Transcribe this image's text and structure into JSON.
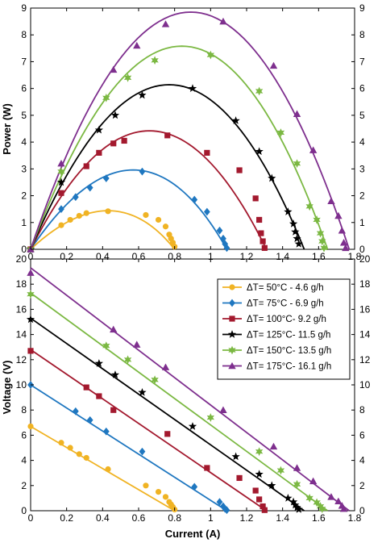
{
  "chart_data": [
    {
      "type": "scatter",
      "title": "",
      "xlabel": "",
      "ylabel": "Power (W)",
      "xlim": [
        0,
        1.8
      ],
      "ylim": [
        0,
        9
      ],
      "xticks": [
        "0",
        "0.2",
        "0.4",
        "0.6",
        "0.8",
        "1",
        "1.2",
        "1.4",
        "1.6",
        "1.8"
      ],
      "yticks": [
        "0",
        "1",
        "2",
        "3",
        "4",
        "5",
        "6",
        "7",
        "8",
        "9"
      ],
      "grid": false,
      "series": [
        {
          "key": "s50",
          "points": [
            [
              0,
              0
            ],
            [
              0.17,
              0.9
            ],
            [
              0.22,
              1.1
            ],
            [
              0.27,
              1.25
            ],
            [
              0.31,
              1.35
            ],
            [
              0.43,
              1.42
            ],
            [
              0.64,
              1.28
            ],
            [
              0.71,
              1.1
            ],
            [
              0.75,
              0.85
            ],
            [
              0.77,
              0.55
            ],
            [
              0.78,
              0.4
            ],
            [
              0.79,
              0.25
            ],
            [
              0.8,
              0.1
            ]
          ],
          "fit": [
            [
              0,
              0
            ],
            [
              0.43,
              1.44
            ],
            [
              0.8,
              0
            ]
          ]
        },
        {
          "key": "s75",
          "points": [
            [
              0,
              0
            ],
            [
              0.17,
              1.5
            ],
            [
              0.25,
              1.95
            ],
            [
              0.33,
              2.3
            ],
            [
              0.42,
              2.65
            ],
            [
              0.62,
              2.9
            ],
            [
              0.91,
              1.85
            ],
            [
              0.98,
              1.4
            ],
            [
              1.05,
              0.7
            ],
            [
              1.07,
              0.4
            ],
            [
              1.08,
              0.2
            ],
            [
              1.09,
              0.05
            ]
          ],
          "fit": [
            [
              0,
              0
            ],
            [
              0.57,
              2.96
            ],
            [
              1.09,
              0
            ]
          ]
        },
        {
          "key": "s100",
          "points": [
            [
              0,
              0
            ],
            [
              0.17,
              2.1
            ],
            [
              0.31,
              3.1
            ],
            [
              0.38,
              3.6
            ],
            [
              0.46,
              3.95
            ],
            [
              0.52,
              4.05
            ],
            [
              0.76,
              4.25
            ],
            [
              0.98,
              3.6
            ],
            [
              1.16,
              2.95
            ],
            [
              1.25,
              1.9
            ],
            [
              1.27,
              1.1
            ],
            [
              1.28,
              0.6
            ],
            [
              1.29,
              0.3
            ],
            [
              1.3,
              0.05
            ]
          ],
          "fit": [
            [
              0,
              0
            ],
            [
              0.66,
              4.42
            ],
            [
              1.31,
              0
            ]
          ]
        },
        {
          "key": "s125",
          "points": [
            [
              0,
              0
            ],
            [
              0.17,
              2.5
            ],
            [
              0.38,
              4.45
            ],
            [
              0.47,
              5.0
            ],
            [
              0.62,
              5.75
            ],
            [
              0.9,
              6.0
            ],
            [
              1.14,
              4.8
            ],
            [
              1.27,
              3.65
            ],
            [
              1.34,
              2.65
            ],
            [
              1.43,
              1.4
            ],
            [
              1.46,
              0.95
            ],
            [
              1.47,
              0.65
            ],
            [
              1.48,
              0.4
            ],
            [
              1.49,
              0.2
            ]
          ],
          "fit": [
            [
              0,
              0
            ],
            [
              0.77,
              6.14
            ],
            [
              1.52,
              0
            ]
          ]
        },
        {
          "key": "s150",
          "points": [
            [
              0,
              0
            ],
            [
              0.17,
              2.9
            ],
            [
              0.42,
              5.65
            ],
            [
              0.54,
              6.4
            ],
            [
              0.69,
              7.05
            ],
            [
              1.0,
              7.25
            ],
            [
              1.27,
              5.9
            ],
            [
              1.39,
              4.35
            ],
            [
              1.48,
              3.2
            ],
            [
              1.55,
              1.6
            ],
            [
              1.59,
              1.1
            ],
            [
              1.61,
              0.6
            ],
            [
              1.62,
              0.3
            ],
            [
              1.63,
              0.05
            ]
          ],
          "fit": [
            [
              0,
              0
            ],
            [
              0.84,
              7.58
            ],
            [
              1.65,
              0
            ]
          ]
        },
        {
          "key": "s175",
          "points": [
            [
              0,
              0
            ],
            [
              0.17,
              3.2
            ],
            [
              0.46,
              6.7
            ],
            [
              0.59,
              7.6
            ],
            [
              0.75,
              8.4
            ],
            [
              1.07,
              8.5
            ],
            [
              1.35,
              6.85
            ],
            [
              1.48,
              5.05
            ],
            [
              1.57,
              3.7
            ],
            [
              1.67,
              1.8
            ],
            [
              1.71,
              1.25
            ],
            [
              1.73,
              0.7
            ],
            [
              1.74,
              0.25
            ],
            [
              1.75,
              0.05
            ]
          ],
          "fit": [
            [
              0,
              0
            ],
            [
              0.89,
              8.85
            ],
            [
              1.77,
              0
            ]
          ]
        }
      ]
    },
    {
      "type": "scatter",
      "title": "",
      "xlabel": "Current (A)",
      "ylabel": "Voltage (V)",
      "xlim": [
        0,
        1.8
      ],
      "ylim": [
        0,
        20
      ],
      "xticks": [
        "0",
        "0.2",
        "0.4",
        "0.6",
        "0.8",
        "1",
        "1.2",
        "1.4",
        "1.6",
        "1.8"
      ],
      "yticks": [
        "0",
        "2",
        "4",
        "6",
        "8",
        "10",
        "12",
        "14",
        "16",
        "18",
        "20"
      ],
      "grid": false,
      "legend_position": "top-right",
      "series": [
        {
          "key": "s50",
          "name": "ΔT= 50°C -  4.6  g/h",
          "points": [
            [
              0,
              6.7
            ],
            [
              0.17,
              5.4
            ],
            [
              0.22,
              5.0
            ],
            [
              0.27,
              4.5
            ],
            [
              0.31,
              4.2
            ],
            [
              0.43,
              3.3
            ],
            [
              0.64,
              2.0
            ],
            [
              0.71,
              1.5
            ],
            [
              0.75,
              1.1
            ],
            [
              0.77,
              0.7
            ],
            [
              0.78,
              0.5
            ],
            [
              0.79,
              0.3
            ],
            [
              0.8,
              0.1
            ]
          ],
          "fit": [
            [
              0,
              6.7
            ],
            [
              0.8,
              0
            ]
          ]
        },
        {
          "key": "s75",
          "name": "ΔT= 75°C -  6.9  g/h",
          "points": [
            [
              0,
              10.0
            ],
            [
              0.25,
              7.9
            ],
            [
              0.33,
              7.2
            ],
            [
              0.42,
              6.3
            ],
            [
              0.62,
              4.7
            ],
            [
              0.91,
              1.9
            ],
            [
              1.05,
              0.7
            ],
            [
              1.07,
              0.35
            ],
            [
              1.08,
              0.15
            ],
            [
              1.09,
              0.05
            ]
          ],
          "fit": [
            [
              0,
              10.0
            ],
            [
              1.09,
              0
            ]
          ]
        },
        {
          "key": "s100",
          "name": "ΔT= 100°C- 9.2  g/h",
          "points": [
            [
              0,
              12.7
            ],
            [
              0.31,
              9.8
            ],
            [
              0.38,
              9.1
            ],
            [
              0.46,
              8.0
            ],
            [
              0.76,
              6.1
            ],
            [
              0.98,
              3.4
            ],
            [
              1.16,
              2.6
            ],
            [
              1.25,
              1.6
            ],
            [
              1.27,
              0.9
            ],
            [
              1.29,
              0.35
            ],
            [
              1.3,
              0.05
            ]
          ],
          "fit": [
            [
              0,
              12.8
            ],
            [
              1.31,
              0
            ]
          ]
        },
        {
          "key": "s125",
          "name": "ΔT= 125°C- 11.5  g/h",
          "points": [
            [
              0,
              15.2
            ],
            [
              0.38,
              11.7
            ],
            [
              0.47,
              10.8
            ],
            [
              0.62,
              9.4
            ],
            [
              0.9,
              6.7
            ],
            [
              1.14,
              4.3
            ],
            [
              1.27,
              2.9
            ],
            [
              1.34,
              2.0
            ],
            [
              1.43,
              1.0
            ],
            [
              1.46,
              0.7
            ],
            [
              1.47,
              0.45
            ],
            [
              1.48,
              0.25
            ],
            [
              1.49,
              0.1
            ]
          ],
          "fit": [
            [
              0,
              15.3
            ],
            [
              1.52,
              0
            ]
          ]
        },
        {
          "key": "s150",
          "name": "ΔT= 150°C- 13.5  g/h",
          "points": [
            [
              0,
              17.2
            ],
            [
              0.42,
              13.1
            ],
            [
              0.54,
              12.0
            ],
            [
              0.69,
              10.4
            ],
            [
              1.0,
              7.4
            ],
            [
              1.27,
              4.7
            ],
            [
              1.39,
              3.2
            ],
            [
              1.48,
              2.1
            ],
            [
              1.55,
              1.0
            ],
            [
              1.59,
              0.65
            ],
            [
              1.61,
              0.35
            ],
            [
              1.62,
              0.15
            ]
          ],
          "fit": [
            [
              0,
              17.3
            ],
            [
              1.65,
              0
            ]
          ]
        },
        {
          "key": "s175",
          "name": "ΔT= 175°C- 16.1  g/h",
          "points": [
            [
              0,
              18.9
            ],
            [
              0.46,
              14.4
            ],
            [
              0.59,
              13.2
            ],
            [
              0.75,
              11.4
            ],
            [
              1.07,
              8.0
            ],
            [
              1.35,
              5.1
            ],
            [
              1.48,
              3.4
            ],
            [
              1.57,
              2.35
            ],
            [
              1.67,
              1.1
            ],
            [
              1.71,
              0.75
            ],
            [
              1.73,
              0.4
            ],
            [
              1.74,
              0.15
            ]
          ],
          "fit": [
            [
              0,
              19.3
            ],
            [
              1.77,
              0
            ]
          ]
        }
      ]
    }
  ],
  "series_style": {
    "s50": {
      "color": "#F0B323",
      "marker": "circle"
    },
    "s75": {
      "color": "#1F77C0",
      "marker": "diamond"
    },
    "s100": {
      "color": "#A3192E",
      "marker": "square"
    },
    "s125": {
      "color": "#000000",
      "marker": "star"
    },
    "s150": {
      "color": "#7BB842",
      "marker": "star6"
    },
    "s175": {
      "color": "#7E2F8E",
      "marker": "triangle"
    }
  }
}
